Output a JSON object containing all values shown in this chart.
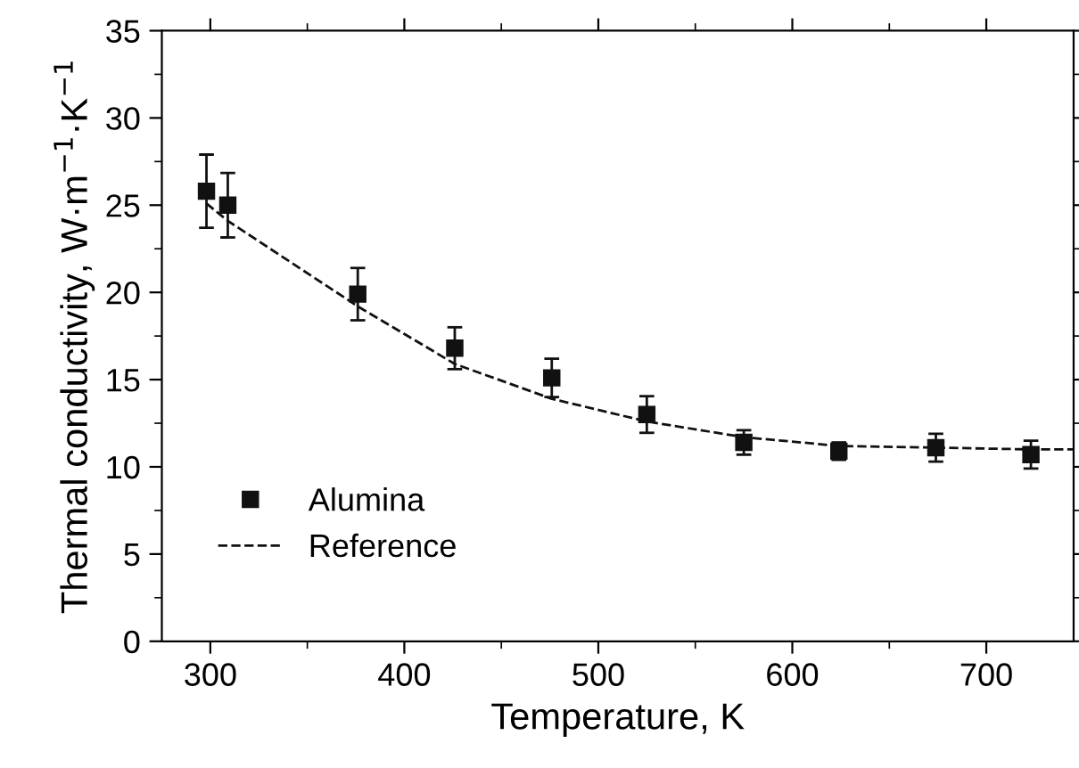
{
  "chart_data": {
    "type": "scatter",
    "xlabel": "Temperature, K",
    "ylabel": "Thermal conductivity, W·m$^{−1}$·K$^{−1}$",
    "xlim": [
      275,
      745
    ],
    "xticks": [
      300,
      400,
      500,
      600,
      700
    ],
    "ylim": [
      0,
      35
    ],
    "yticks": [
      0,
      5,
      10,
      15,
      20,
      25,
      30,
      35
    ],
    "grid": false,
    "legend": "bottom left",
    "series": [
      {
        "name": "Alumina",
        "color": "#111111",
        "marker": "square",
        "x": [
          298,
          309,
          376,
          426,
          476,
          525,
          575,
          624,
          674,
          723
        ],
        "values": [
          25.8,
          25.0,
          19.9,
          16.8,
          15.1,
          13.0,
          11.4,
          10.9,
          11.1,
          10.7
        ],
        "errors": [
          2.1,
          1.85,
          1.5,
          1.2,
          1.1,
          1.05,
          0.7,
          0.5,
          0.8,
          0.8
        ]
      },
      {
        "name": "Reference",
        "type": "line",
        "color": "#111111",
        "line_style": "dashed",
        "marker": "none",
        "x": [
          298,
          309,
          376,
          426,
          476,
          525,
          575,
          624,
          674,
          723,
          745
        ],
        "values": [
          25.1,
          24.1,
          19.2,
          15.9,
          13.9,
          12.6,
          11.7,
          11.2,
          11.1,
          11.0,
          11.0
        ]
      }
    ]
  }
}
